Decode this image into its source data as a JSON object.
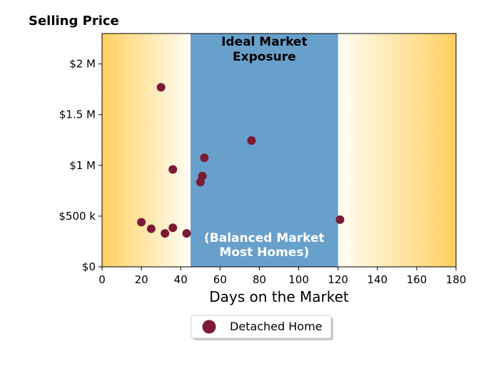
{
  "chart_data": {
    "type": "scatter",
    "title": "Selling Price",
    "xlabel": "Days on the Market",
    "ylabel": "",
    "xlim": [
      0,
      180
    ],
    "ylim": [
      0,
      2300000
    ],
    "x_ticks": [
      0,
      20,
      40,
      60,
      80,
      100,
      120,
      140,
      160,
      180
    ],
    "x_tick_labels": [
      "0",
      "20",
      "40",
      "60",
      "80",
      "100",
      "120",
      "140",
      "160",
      "180"
    ],
    "y_ticks": [
      0,
      500000,
      1000000,
      1500000,
      2000000
    ],
    "y_tick_labels": [
      "$0",
      "$500 k",
      "$1 M",
      "$1.5 M",
      "$2 M"
    ],
    "grid": false,
    "legend_position": "bottom-center",
    "bands": [
      {
        "x_start": 45,
        "x_end": 120,
        "color": "#68a0cc",
        "label_top": [
          "Ideal Market",
          "Exposure"
        ],
        "label_bottom": [
          "(Balanced Market",
          "Most Homes)"
        ]
      }
    ],
    "gradient_colors": {
      "edge": "#ffd060",
      "inner": "#fffdf5"
    },
    "series": [
      {
        "name": "Detached Home",
        "color": "#7a1a34",
        "x": [
          20,
          25,
          30,
          32,
          36,
          36,
          43,
          50,
          51,
          52,
          76,
          121
        ],
        "y": [
          440000,
          375000,
          1770000,
          330000,
          960000,
          385000,
          330000,
          835000,
          895000,
          1075000,
          1245000,
          465000
        ]
      }
    ]
  }
}
